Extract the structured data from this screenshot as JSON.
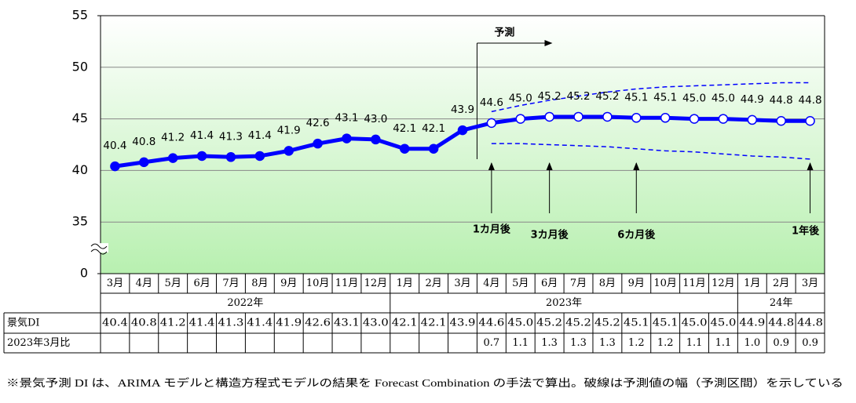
{
  "chart_data": {
    "type": "line",
    "ylim": [
      0,
      55
    ],
    "yticks": [
      0,
      35,
      40,
      45,
      50,
      55
    ],
    "axis_break": true,
    "grid": true,
    "years": [
      {
        "label": "2022年",
        "months": [
          "3月",
          "4月",
          "5月",
          "6月",
          "7月",
          "8月",
          "9月",
          "10月",
          "11月",
          "12月"
        ]
      },
      {
        "label": "2023年",
        "months": [
          "1月",
          "2月",
          "3月",
          "4月",
          "5月",
          "6月",
          "7月",
          "8月",
          "9月",
          "10月",
          "11月",
          "12月"
        ]
      },
      {
        "label": "24年",
        "months": [
          "1月",
          "2月",
          "3月"
        ]
      }
    ],
    "series": [
      {
        "color": "#0000ff",
        "values": [
          40.4,
          40.8,
          41.2,
          41.4,
          41.3,
          41.4,
          41.9,
          42.6,
          43.1,
          43.0,
          42.1,
          42.1,
          43.9,
          44.6,
          45.0,
          45.2,
          45.2,
          45.2,
          45.1,
          45.1,
          45.0,
          45.0,
          44.9,
          44.8,
          44.8
        ],
        "value_labels": [
          "40.4",
          "40.8",
          "41.2",
          "41.4",
          "41.3",
          "41.4",
          "41.9",
          "42.6",
          "43.1",
          "43.0",
          "42.1",
          "42.1",
          "43.9",
          "44.6",
          "45.0",
          "45.2",
          "45.2",
          "45.2",
          "45.1",
          "45.1",
          "45.0",
          "45.0",
          "44.9",
          "44.8",
          "44.8"
        ]
      }
    ],
    "forecast": {
      "label": "予測",
      "upper": [
        null,
        null,
        null,
        null,
        null,
        null,
        null,
        null,
        null,
        null,
        null,
        null,
        null,
        45.7,
        46.3,
        46.8,
        47.2,
        47.6,
        47.9,
        48.1,
        48.2,
        48.3,
        48.4,
        48.5,
        48.5
      ],
      "lower": [
        null,
        null,
        null,
        null,
        null,
        null,
        null,
        null,
        null,
        null,
        null,
        null,
        null,
        42.6,
        42.6,
        42.5,
        42.4,
        42.3,
        42.1,
        41.9,
        41.8,
        41.6,
        41.4,
        41.3,
        41.1
      ]
    },
    "annotations": [
      "1カ月後",
      "3カ月後",
      "6カ月後",
      "1年後"
    ]
  },
  "table": {
    "rows": [
      {
        "label": "景気DI"
      },
      {
        "label": "2023年3月比",
        "values": [
          null,
          null,
          null,
          null,
          null,
          null,
          null,
          null,
          null,
          null,
          null,
          null,
          null,
          "0.7",
          "1.1",
          "1.3",
          "1.3",
          "1.3",
          "1.2",
          "1.2",
          "1.1",
          "1.1",
          "1.0",
          "0.9",
          "0.9"
        ]
      }
    ]
  },
  "footnote": "※景気予測 DI は、ARIMA モデルと構造方程式モデルの結果を Forecast Combination の手法で算出。破線は予測値の幅（予測区間）を示している"
}
